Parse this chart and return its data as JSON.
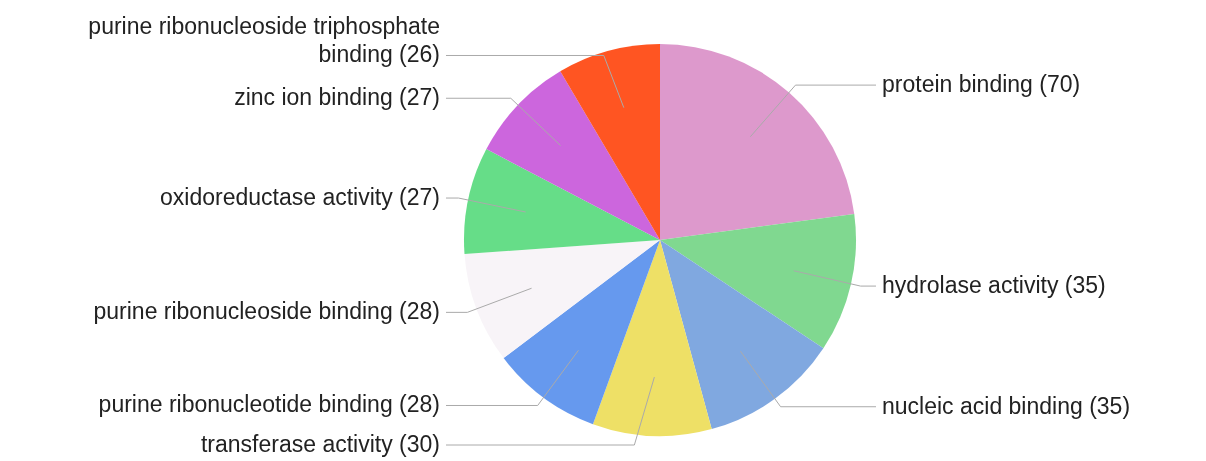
{
  "chart_data": {
    "type": "pie",
    "categories": [
      "protein binding (70)",
      "hydrolase activity (35)",
      "nucleic acid binding (35)",
      "transferase activity (30)",
      "purine ribonucleotide binding (28)",
      "purine ribonucleoside binding (28)",
      "oxidoreductase activity (27)",
      "zinc ion binding (27)",
      "purine ribonucleoside triphosphate binding (26)"
    ],
    "values": [
      70,
      35,
      35,
      30,
      28,
      28,
      27,
      27,
      26
    ],
    "colors": [
      "#dd99cc",
      "#80d890",
      "#80a8e0",
      "#eee066",
      "#6699ee",
      "#f8f4f8",
      "#66dd88",
      "#cc66dd",
      "#ff5522"
    ]
  }
}
